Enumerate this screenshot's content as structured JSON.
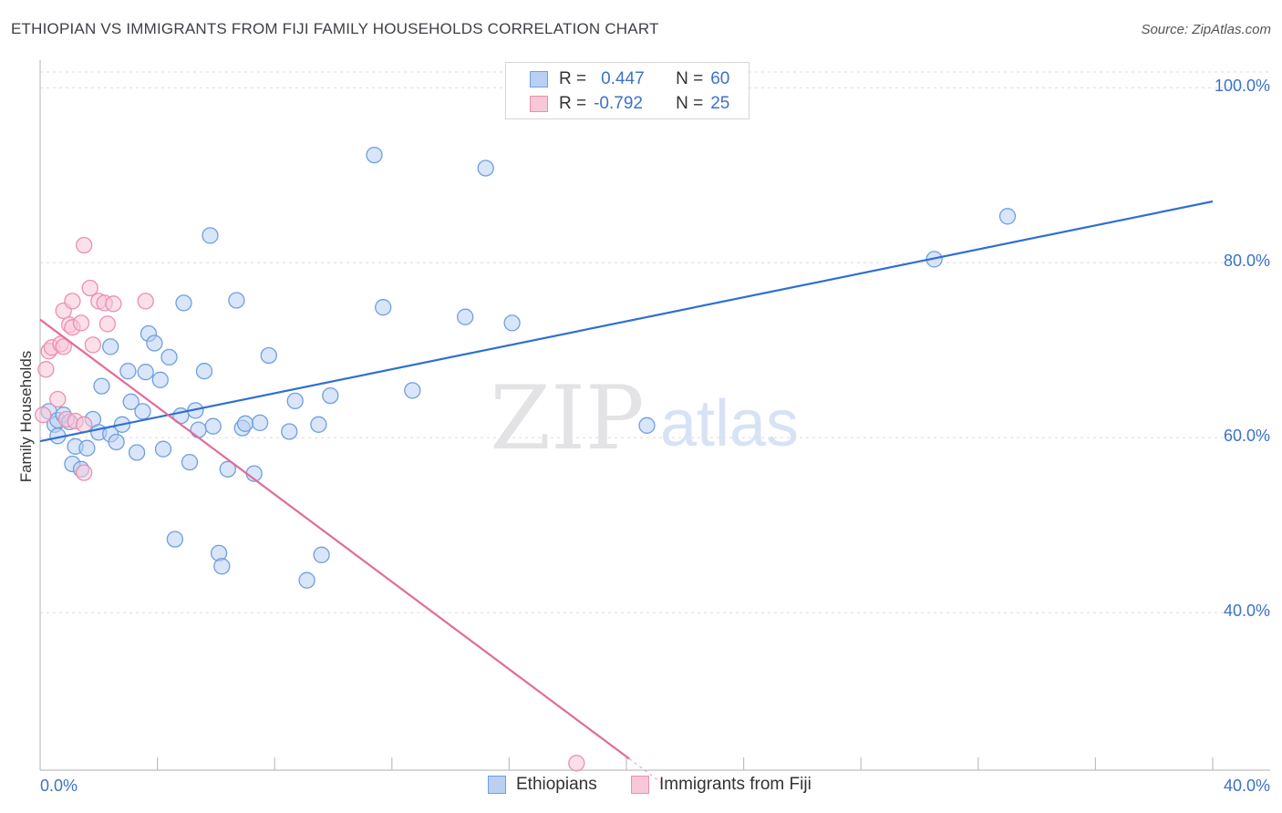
{
  "chart_data": {
    "type": "scatter",
    "title": "ETHIOPIAN VS IMMIGRANTS FROM FIJI FAMILY HOUSEHOLDS CORRELATION CHART",
    "source": "Source: ZipAtlas.com",
    "xlabel": "",
    "ylabel": "Family Households",
    "xlim": [
      0,
      40
    ],
    "ylim": [
      22,
      102
    ],
    "y_ticks": [
      {
        "value": 100,
        "label": "100.0%"
      },
      {
        "value": 80,
        "label": "80.0%"
      },
      {
        "value": 60,
        "label": "60.0%"
      },
      {
        "value": 40,
        "label": "40.0%"
      }
    ],
    "x_tick_labels": {
      "left": "0.0%",
      "right": "40.0%"
    },
    "watermark": {
      "zip": "ZIP",
      "atlas": "atlas"
    },
    "legend": {
      "rows": [
        {
          "r_label": "R =",
          "r_value": "0.447",
          "n_label": "N =",
          "n_value": "60"
        },
        {
          "r_label": "R =",
          "r_value": "-0.792",
          "n_label": "N =",
          "n_value": "25"
        }
      ]
    },
    "series": [
      {
        "name": "Ethiopians",
        "color": "#6f9fe0",
        "fill": "#b9d0f2",
        "line_color": "#2f6fd0",
        "trend": {
          "x": [
            0,
            40
          ],
          "y": [
            59.6,
            87.0
          ],
          "dashed_from": null
        },
        "points": [
          {
            "x": 0.3,
            "y": 63.0
          },
          {
            "x": 0.5,
            "y": 61.5
          },
          {
            "x": 0.6,
            "y": 62.0
          },
          {
            "x": 0.6,
            "y": 60.2
          },
          {
            "x": 0.8,
            "y": 62.6
          },
          {
            "x": 1.0,
            "y": 61.8
          },
          {
            "x": 1.1,
            "y": 57.0
          },
          {
            "x": 1.2,
            "y": 59.0
          },
          {
            "x": 1.4,
            "y": 56.4
          },
          {
            "x": 1.6,
            "y": 58.8
          },
          {
            "x": 1.8,
            "y": 62.1
          },
          {
            "x": 2.0,
            "y": 60.6
          },
          {
            "x": 2.1,
            "y": 65.9
          },
          {
            "x": 2.4,
            "y": 60.4
          },
          {
            "x": 2.4,
            "y": 70.4
          },
          {
            "x": 2.6,
            "y": 59.5
          },
          {
            "x": 2.8,
            "y": 61.5
          },
          {
            "x": 3.0,
            "y": 67.6
          },
          {
            "x": 3.1,
            "y": 64.1
          },
          {
            "x": 3.3,
            "y": 58.3
          },
          {
            "x": 3.5,
            "y": 63.0
          },
          {
            "x": 3.6,
            "y": 67.5
          },
          {
            "x": 3.7,
            "y": 71.9
          },
          {
            "x": 3.9,
            "y": 70.8
          },
          {
            "x": 4.1,
            "y": 66.6
          },
          {
            "x": 4.2,
            "y": 58.7
          },
          {
            "x": 4.4,
            "y": 69.2
          },
          {
            "x": 4.6,
            "y": 48.4
          },
          {
            "x": 4.8,
            "y": 62.5
          },
          {
            "x": 4.9,
            "y": 75.4
          },
          {
            "x": 5.1,
            "y": 57.2
          },
          {
            "x": 5.3,
            "y": 63.1
          },
          {
            "x": 5.4,
            "y": 60.9
          },
          {
            "x": 5.6,
            "y": 67.6
          },
          {
            "x": 5.8,
            "y": 83.1
          },
          {
            "x": 5.9,
            "y": 61.3
          },
          {
            "x": 6.1,
            "y": 46.8
          },
          {
            "x": 6.2,
            "y": 45.3
          },
          {
            "x": 6.4,
            "y": 56.4
          },
          {
            "x": 6.7,
            "y": 75.7
          },
          {
            "x": 6.9,
            "y": 61.1
          },
          {
            "x": 7.0,
            "y": 61.6
          },
          {
            "x": 7.3,
            "y": 55.9
          },
          {
            "x": 7.5,
            "y": 61.7
          },
          {
            "x": 7.8,
            "y": 69.4
          },
          {
            "x": 8.5,
            "y": 60.7
          },
          {
            "x": 8.7,
            "y": 64.2
          },
          {
            "x": 9.1,
            "y": 43.7
          },
          {
            "x": 9.5,
            "y": 61.5
          },
          {
            "x": 9.6,
            "y": 46.6
          },
          {
            "x": 9.9,
            "y": 64.8
          },
          {
            "x": 11.4,
            "y": 92.3
          },
          {
            "x": 11.7,
            "y": 74.9
          },
          {
            "x": 12.7,
            "y": 65.4
          },
          {
            "x": 14.5,
            "y": 73.8
          },
          {
            "x": 15.2,
            "y": 90.8
          },
          {
            "x": 16.1,
            "y": 73.1
          },
          {
            "x": 20.7,
            "y": 61.4
          },
          {
            "x": 30.5,
            "y": 80.4
          },
          {
            "x": 33.0,
            "y": 85.3
          }
        ]
      },
      {
        "name": "Immigrants from Fiji",
        "color": "#ec8fb0",
        "fill": "#f8c7d8",
        "line_color": "#e36b97",
        "trend": {
          "x": [
            0,
            21.3
          ],
          "y": [
            73.5,
            20.3
          ],
          "dashed_from": 20.1
        },
        "points": [
          {
            "x": 0.1,
            "y": 62.6
          },
          {
            "x": 0.2,
            "y": 67.8
          },
          {
            "x": 0.3,
            "y": 69.9
          },
          {
            "x": 0.4,
            "y": 70.3
          },
          {
            "x": 0.6,
            "y": 64.4
          },
          {
            "x": 0.7,
            "y": 70.7
          },
          {
            "x": 0.8,
            "y": 70.4
          },
          {
            "x": 0.8,
            "y": 74.5
          },
          {
            "x": 0.9,
            "y": 62.1
          },
          {
            "x": 1.0,
            "y": 72.9
          },
          {
            "x": 1.1,
            "y": 72.6
          },
          {
            "x": 1.1,
            "y": 75.6
          },
          {
            "x": 1.2,
            "y": 61.9
          },
          {
            "x": 1.4,
            "y": 73.1
          },
          {
            "x": 1.5,
            "y": 61.5
          },
          {
            "x": 1.5,
            "y": 56.0
          },
          {
            "x": 1.5,
            "y": 82.0
          },
          {
            "x": 1.7,
            "y": 77.1
          },
          {
            "x": 1.8,
            "y": 70.6
          },
          {
            "x": 2.0,
            "y": 75.6
          },
          {
            "x": 2.2,
            "y": 75.4
          },
          {
            "x": 2.3,
            "y": 73.0
          },
          {
            "x": 2.5,
            "y": 75.3
          },
          {
            "x": 3.6,
            "y": 75.6
          },
          {
            "x": 18.3,
            "y": 22.8
          }
        ]
      }
    ]
  }
}
